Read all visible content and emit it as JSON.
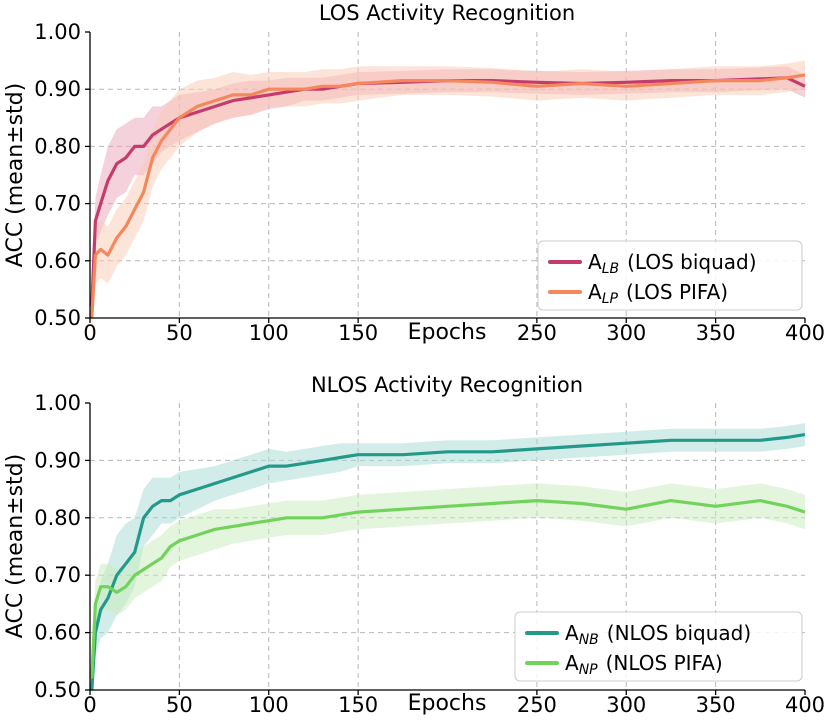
{
  "chart_data": [
    {
      "type": "line",
      "title": "LOS Activity Recognition",
      "xlabel": "Epochs",
      "ylabel": "ACC (mean±std)",
      "xlim": [
        0,
        400
      ],
      "ylim": [
        0.5,
        1.0
      ],
      "xticks": [
        "0",
        "50",
        "100",
        "150",
        "250",
        "300",
        "350",
        "400"
      ],
      "xtick_values": [
        0,
        50,
        100,
        150,
        250,
        300,
        350,
        400
      ],
      "yticks": [
        "0.50",
        "0.60",
        "0.70",
        "0.80",
        "0.90",
        "1.00"
      ],
      "ytick_values": [
        0.5,
        0.6,
        0.7,
        0.8,
        0.9,
        1.0
      ],
      "grid": true,
      "legend_position": "lower-right",
      "series": [
        {
          "name": "A_LB (LOS biquad)",
          "legend_main": "A",
          "legend_sub": "LB",
          "legend_text": "(LOS biquad)",
          "color": "#c43b6e",
          "band_color": "#e9a3b8",
          "x": [
            1,
            3,
            6,
            10,
            15,
            20,
            25,
            30,
            35,
            40,
            45,
            50,
            60,
            70,
            80,
            90,
            100,
            110,
            120,
            130,
            140,
            150,
            175,
            200,
            225,
            250,
            275,
            300,
            325,
            350,
            375,
            390,
            400
          ],
          "values": [
            0.52,
            0.67,
            0.7,
            0.74,
            0.77,
            0.78,
            0.8,
            0.8,
            0.82,
            0.83,
            0.84,
            0.85,
            0.86,
            0.87,
            0.88,
            0.885,
            0.89,
            0.895,
            0.9,
            0.9,
            0.905,
            0.91,
            0.912,
            0.915,
            0.915,
            0.912,
            0.91,
            0.912,
            0.915,
            0.915,
            0.918,
            0.92,
            0.905
          ],
          "std": [
            0.03,
            0.04,
            0.05,
            0.06,
            0.06,
            0.06,
            0.05,
            0.05,
            0.05,
            0.04,
            0.04,
            0.04,
            0.035,
            0.03,
            0.03,
            0.03,
            0.025,
            0.025,
            0.02,
            0.02,
            0.02,
            0.02,
            0.02,
            0.02,
            0.02,
            0.02,
            0.02,
            0.02,
            0.02,
            0.02,
            0.02,
            0.02,
            0.02
          ]
        },
        {
          "name": "A_LP (LOS PIFA)",
          "legend_main": "A",
          "legend_sub": "LP",
          "legend_text": "(LOS PIFA)",
          "color": "#f5875c",
          "band_color": "#fbc9b3",
          "x": [
            1,
            3,
            6,
            10,
            15,
            20,
            25,
            30,
            35,
            40,
            45,
            50,
            60,
            70,
            80,
            90,
            100,
            110,
            120,
            130,
            140,
            150,
            175,
            200,
            225,
            250,
            275,
            300,
            325,
            350,
            375,
            390,
            400
          ],
          "values": [
            0.5,
            0.61,
            0.62,
            0.61,
            0.64,
            0.66,
            0.69,
            0.72,
            0.78,
            0.81,
            0.83,
            0.85,
            0.87,
            0.88,
            0.89,
            0.89,
            0.9,
            0.9,
            0.9,
            0.905,
            0.905,
            0.91,
            0.915,
            0.915,
            0.912,
            0.905,
            0.91,
            0.905,
            0.91,
            0.915,
            0.915,
            0.92,
            0.925
          ],
          "std": [
            0.04,
            0.05,
            0.05,
            0.05,
            0.05,
            0.05,
            0.05,
            0.05,
            0.05,
            0.05,
            0.05,
            0.05,
            0.045,
            0.04,
            0.04,
            0.035,
            0.03,
            0.03,
            0.03,
            0.03,
            0.03,
            0.03,
            0.025,
            0.025,
            0.025,
            0.025,
            0.025,
            0.025,
            0.025,
            0.025,
            0.025,
            0.025,
            0.025
          ]
        }
      ]
    },
    {
      "type": "line",
      "title": "NLOS Activity Recognition",
      "xlabel": "Epochs",
      "ylabel": "ACC (mean±std)",
      "xlim": [
        0,
        400
      ],
      "ylim": [
        0.5,
        1.0
      ],
      "xticks": [
        "0",
        "50",
        "100",
        "150",
        "250",
        "300",
        "350",
        "400"
      ],
      "xtick_values": [
        0,
        50,
        100,
        150,
        250,
        300,
        350,
        400
      ],
      "yticks": [
        "0.50",
        "0.60",
        "0.70",
        "0.80",
        "0.90",
        "1.00"
      ],
      "ytick_values": [
        0.5,
        0.6,
        0.7,
        0.8,
        0.9,
        1.0
      ],
      "grid": true,
      "legend_position": "lower-right",
      "series": [
        {
          "name": "A_NB (NLOS biquad)",
          "legend_main": "A",
          "legend_sub": "NB",
          "legend_text": "(NLOS biquad)",
          "color": "#24998a",
          "band_color": "#a6dcd4",
          "x": [
            1,
            3,
            6,
            10,
            15,
            20,
            25,
            30,
            35,
            40,
            45,
            50,
            60,
            70,
            80,
            90,
            100,
            110,
            120,
            130,
            140,
            150,
            175,
            200,
            225,
            250,
            275,
            300,
            325,
            350,
            375,
            390,
            400
          ],
          "values": [
            0.5,
            0.6,
            0.64,
            0.66,
            0.7,
            0.72,
            0.74,
            0.8,
            0.82,
            0.83,
            0.83,
            0.84,
            0.85,
            0.86,
            0.87,
            0.88,
            0.89,
            0.89,
            0.895,
            0.9,
            0.905,
            0.91,
            0.91,
            0.915,
            0.915,
            0.92,
            0.925,
            0.93,
            0.935,
            0.935,
            0.935,
            0.94,
            0.945
          ],
          "std": [
            0.02,
            0.04,
            0.05,
            0.06,
            0.07,
            0.07,
            0.06,
            0.05,
            0.05,
            0.04,
            0.04,
            0.04,
            0.035,
            0.03,
            0.03,
            0.03,
            0.03,
            0.025,
            0.025,
            0.025,
            0.025,
            0.02,
            0.02,
            0.02,
            0.02,
            0.02,
            0.02,
            0.02,
            0.02,
            0.02,
            0.02,
            0.02,
            0.02
          ]
        },
        {
          "name": "A_NP (NLOS PIFA)",
          "legend_main": "A",
          "legend_sub": "NP",
          "legend_text": "(NLOS PIFA)",
          "color": "#72d35b",
          "band_color": "#c8ecbb",
          "x": [
            1,
            3,
            6,
            10,
            15,
            20,
            25,
            30,
            35,
            40,
            45,
            50,
            60,
            70,
            80,
            90,
            100,
            110,
            120,
            130,
            140,
            150,
            175,
            200,
            225,
            250,
            275,
            300,
            325,
            350,
            375,
            390,
            400
          ],
          "values": [
            0.52,
            0.65,
            0.68,
            0.68,
            0.67,
            0.68,
            0.7,
            0.71,
            0.72,
            0.73,
            0.75,
            0.76,
            0.77,
            0.78,
            0.785,
            0.79,
            0.795,
            0.8,
            0.8,
            0.8,
            0.805,
            0.81,
            0.815,
            0.82,
            0.825,
            0.83,
            0.825,
            0.815,
            0.83,
            0.82,
            0.83,
            0.82,
            0.81
          ],
          "std": [
            0.03,
            0.04,
            0.04,
            0.04,
            0.04,
            0.04,
            0.04,
            0.04,
            0.04,
            0.04,
            0.035,
            0.035,
            0.035,
            0.035,
            0.03,
            0.03,
            0.03,
            0.03,
            0.03,
            0.03,
            0.03,
            0.03,
            0.03,
            0.03,
            0.03,
            0.03,
            0.03,
            0.03,
            0.03,
            0.03,
            0.03,
            0.03,
            0.03
          ]
        }
      ]
    }
  ]
}
